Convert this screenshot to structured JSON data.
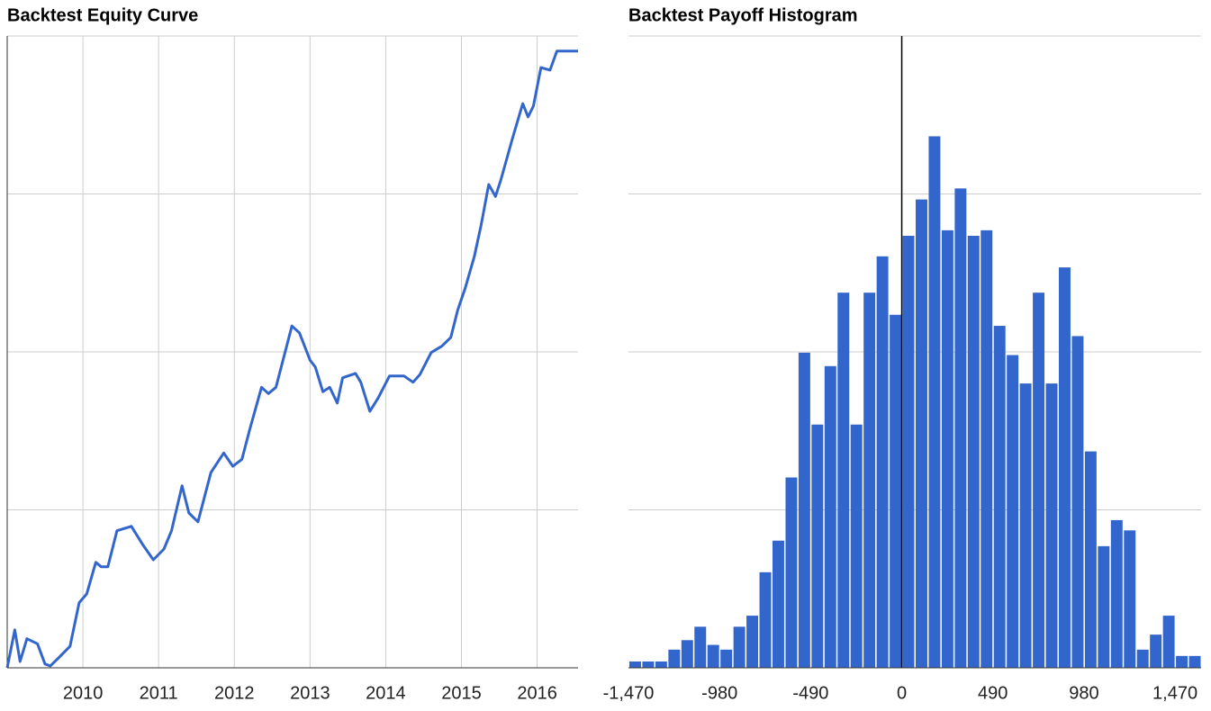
{
  "chart_data": [
    {
      "type": "line",
      "title": "Backtest Equity Curve",
      "x": [
        2009.0,
        2009.1,
        2009.17,
        2009.26,
        2009.4,
        2009.5,
        2009.57,
        2009.69,
        2009.83,
        2009.95,
        2010.05,
        2010.17,
        2010.24,
        2010.33,
        2010.45,
        2010.64,
        2010.79,
        2010.93,
        2011.07,
        2011.17,
        2011.31,
        2011.4,
        2011.52,
        2011.69,
        2011.86,
        2011.98,
        2012.1,
        2012.21,
        2012.36,
        2012.45,
        2012.55,
        2012.76,
        2012.86,
        2013.0,
        2013.07,
        2013.17,
        2013.26,
        2013.36,
        2013.43,
        2013.6,
        2013.67,
        2013.79,
        2013.9,
        2014.05,
        2014.24,
        2014.36,
        2014.45,
        2014.6,
        2014.74,
        2014.86,
        2014.95,
        2015.05,
        2015.17,
        2015.26,
        2015.36,
        2015.45,
        2015.52,
        2015.67,
        2015.81,
        2015.88,
        2015.95,
        2016.05,
        2016.17,
        2016.26,
        2016.54
      ],
      "series": [
        {
          "color": "#3366cc",
          "values": [
            0,
            6.0,
            1.0,
            4.6,
            3.8,
            0.6,
            0.3,
            1.7,
            3.4,
            10.3,
            11.7,
            16.7,
            16.0,
            16.0,
            21.7,
            22.4,
            19.5,
            17.1,
            18.8,
            21.7,
            28.8,
            24.5,
            23.1,
            30.9,
            34.0,
            31.9,
            33.0,
            38.0,
            44.4,
            43.4,
            44.4,
            54.1,
            53.0,
            48.7,
            47.6,
            43.7,
            44.4,
            41.9,
            45.9,
            46.6,
            45.2,
            40.6,
            42.7,
            46.2,
            46.2,
            45.2,
            46.4,
            49.9,
            50.9,
            52.3,
            56.6,
            60.1,
            65.1,
            70.1,
            76.5,
            74.6,
            77.2,
            83.6,
            89.3,
            87.2,
            88.9,
            95.0,
            94.6,
            97.6,
            97.6
          ]
        }
      ],
      "xlim": [
        2009.0,
        2016.54
      ],
      "xticks": [
        2010,
        2011,
        2012,
        2013,
        2014,
        2015,
        2016
      ],
      "ylim": [
        0,
        100
      ],
      "ygrid": [
        0,
        25,
        50,
        75,
        100
      ],
      "grid": true
    },
    {
      "type": "histogram",
      "title": "Backtest Payoff Histogram",
      "bins": [
        -1470,
        -1400,
        -1330,
        -1260,
        -1190,
        -1120,
        -1050,
        -980,
        -910,
        -840,
        -770,
        -700,
        -630,
        -560,
        -490,
        -420,
        -350,
        -280,
        -210,
        -140,
        -70,
        0,
        70,
        140,
        210,
        280,
        350,
        420,
        490,
        560,
        630,
        700,
        770,
        840,
        910,
        980,
        1050,
        1120,
        1190,
        1260,
        1330,
        1400,
        1470,
        1540,
        1610
      ],
      "values": [
        0.8,
        0.8,
        0.8,
        2.3,
        3.5,
        5.2,
        2.9,
        2.3,
        5.2,
        6.6,
        12.1,
        16.1,
        24.1,
        39.9,
        30.8,
        38.2,
        47.5,
        30.8,
        47.5,
        52.1,
        44.7,
        54.7,
        59.3,
        67.3,
        55.4,
        60.7,
        54.7,
        55.4,
        43.3,
        39.6,
        36.0,
        47.5,
        36.0,
        50.7,
        42.0,
        27.4,
        15.4,
        18.7,
        17.4,
        2.3,
        4.2,
        6.6,
        1.5,
        1.5
      ],
      "color": "#3366cc",
      "xlim": [
        -1470,
        1610
      ],
      "xticks": [
        {
          "value": -1470,
          "label": "-1,470"
        },
        -980,
        -490,
        0,
        490,
        980,
        {
          "value": 1470,
          "label": "1,470"
        }
      ],
      "ylim": [
        0,
        80
      ],
      "ygrid": [
        0,
        20,
        40,
        60,
        80
      ],
      "grid": true
    }
  ]
}
